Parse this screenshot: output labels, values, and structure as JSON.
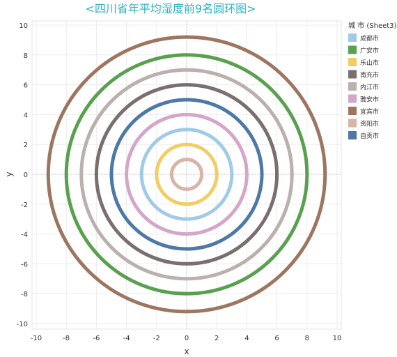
{
  "chart_data": {
    "type": "scatter",
    "title": "<四川省年平均湿度前9名圆环图>",
    "title_color": "#2bb3c0",
    "xlabel": "x",
    "ylabel": "y",
    "xlim": [
      -10.5,
      10.5
    ],
    "ylim": [
      -10.5,
      10.5
    ],
    "xticks": [
      -10,
      -8,
      -6,
      -4,
      -2,
      0,
      2,
      4,
      6,
      8,
      10
    ],
    "yticks": [
      -10,
      -8,
      -6,
      -4,
      -2,
      0,
      2,
      4,
      6,
      8,
      10
    ],
    "grid": true,
    "legend_title": "城 市 (Sheet3)",
    "legend_position": "right",
    "series": [
      {
        "name": "成都市",
        "radius": 3,
        "color": "#a0cbe8"
      },
      {
        "name": "广安市",
        "radius": 8,
        "color": "#59a14f"
      },
      {
        "name": "乐山市",
        "radius": 2,
        "color": "#f1ce63"
      },
      {
        "name": "南充市",
        "radius": 6,
        "color": "#79706e"
      },
      {
        "name": "内江市",
        "radius": 7,
        "color": "#bab0ac"
      },
      {
        "name": "雅安市",
        "radius": 4,
        "color": "#d4a6c8"
      },
      {
        "name": "宜宾市",
        "radius": 9.2,
        "color": "#9d7660"
      },
      {
        "name": "资阳市",
        "radius": 1,
        "color": "#d7b5a6"
      },
      {
        "name": "自贡市",
        "radius": 5,
        "color": "#4e79a7"
      }
    ]
  }
}
